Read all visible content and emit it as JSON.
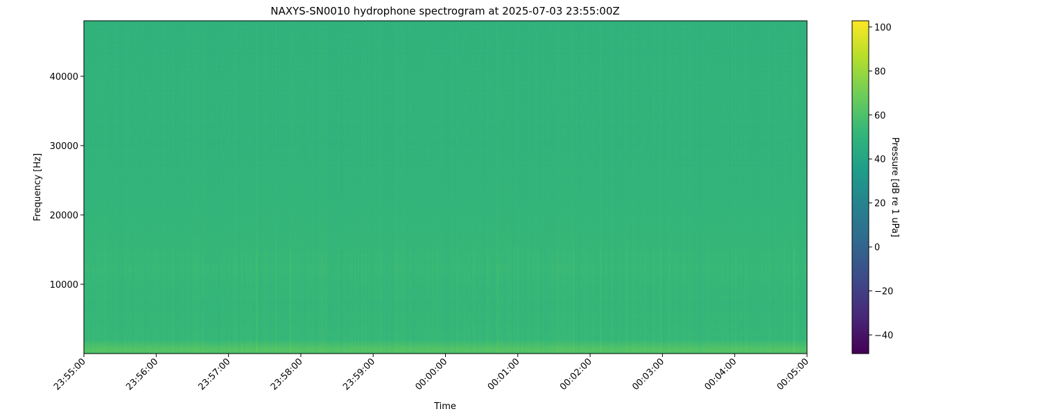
{
  "chart_data": {
    "type": "heatmap",
    "title": "NAXYS-SN0010 hydrophone spectrogram at 2025-07-03 23:55:00Z",
    "xlabel": "Time",
    "ylabel": "Frequency [Hz]",
    "x_tick_labels": [
      "23:55:00",
      "23:56:00",
      "23:57:00",
      "23:58:00",
      "23:59:00",
      "00:00:00",
      "00:01:00",
      "00:02:00",
      "00:03:00",
      "00:04:00",
      "00:05:00"
    ],
    "xlim": [
      "2025-07-03 23:55:00",
      "2025-07-04 00:05:00"
    ],
    "y_ticks": [
      10000,
      20000,
      30000,
      40000
    ],
    "y_tick_labels": [
      "10000",
      "20000",
      "30000",
      "40000"
    ],
    "ylim": [
      0,
      48000
    ],
    "colormap": "viridis",
    "colorbar": {
      "label": "Pressure [dB re 1 uPa]",
      "ticks": [
        -40,
        -20,
        0,
        20,
        40,
        60,
        80,
        100
      ],
      "tick_labels": [
        "−40",
        "−20",
        "0",
        "20",
        "40",
        "60",
        "80",
        "100"
      ],
      "range": [
        -48.5,
        102.8
      ]
    },
    "approx_level_db_by_frequency": {
      "frequency_hz": [
        0,
        500,
        1000,
        2000,
        5000,
        10000,
        12000,
        20000,
        30000,
        40000,
        48000
      ],
      "level_db": [
        58,
        62,
        60,
        53,
        52,
        52,
        53,
        51,
        50,
        50,
        49
      ]
    }
  }
}
